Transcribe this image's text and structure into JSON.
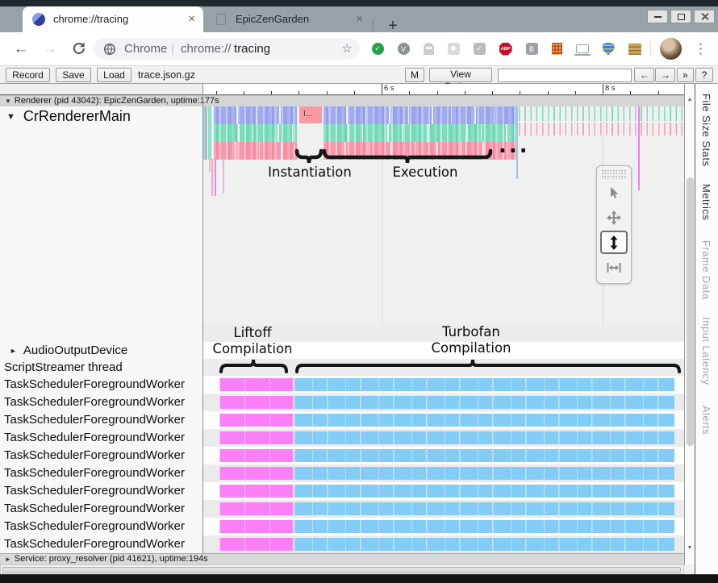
{
  "tab_bar": {
    "tabs": [
      {
        "title": "chrome://tracing",
        "active": true
      },
      {
        "title": "EpicZenGarden",
        "active": false
      }
    ],
    "close_glyph": "×",
    "new_tab_glyph": "+"
  },
  "icons": {
    "back": "←",
    "forward": "→",
    "star": "☆",
    "menu": "⋮",
    "scroll_up": "▲",
    "scroll_down": "▼"
  },
  "address_bar": {
    "site_name": "Chrome",
    "divider": "|",
    "url_scheme": "chrome://",
    "url_host": "tracing",
    "extensions": [
      {
        "name": "green-check-extension",
        "shape": "circle",
        "color": "#1ea446",
        "glyph": "✓"
      },
      {
        "name": "v-circle-extension",
        "shape": "circle",
        "color": "#8a9094",
        "glyph": "V"
      },
      {
        "name": "ghost-extension",
        "shape": "ghost",
        "color": "#c9cdd0",
        "glyph": ""
      },
      {
        "name": "tag-extension",
        "shape": "square",
        "color": "#d9dcde",
        "glyph": "✱"
      },
      {
        "name": "check-extension",
        "shape": "square",
        "color": "#b9bdc0",
        "glyph": "✓"
      },
      {
        "name": "adblock-plus-extension",
        "shape": "octagon",
        "color": "#c70d2c",
        "glyph": "ABP"
      },
      {
        "name": "letter-b-extension",
        "shape": "square",
        "color": "#9da1a4",
        "glyph": "B"
      },
      {
        "name": "red-notebook-extension",
        "shape": "notebook",
        "color": "#c4302b",
        "glyph": ""
      },
      {
        "name": "laptop-extension",
        "shape": "laptop",
        "color": "#9aa0a4",
        "glyph": ""
      },
      {
        "name": "shield-extension",
        "shape": "shield",
        "color": "#3e7de0",
        "glyph": ""
      },
      {
        "name": "archive-extension",
        "shape": "book",
        "color": "#c9a85c",
        "glyph": ""
      }
    ]
  },
  "toolbar": {
    "record_label": "Record",
    "save_label": "Save",
    "load_label": "Load",
    "filename": "trace.json.gz",
    "metrics_label": "M",
    "view_options_label": "View Options",
    "search_value": "",
    "prev_label": "←",
    "next_label": "→",
    "more_label": "»",
    "help_label": "?"
  },
  "ruler": {
    "major_tick_labels": [
      "6 s",
      "8 s"
    ]
  },
  "processes": {
    "renderer": {
      "arrow": "▼",
      "title": "Renderer (pid 43042): EpicZenGarden, uptime:177s"
    },
    "service": {
      "arrow": "►",
      "title": "Service: proxy_resolver (pid 41621), uptime:194s"
    }
  },
  "threads": {
    "main": {
      "arrow": "▼",
      "label": "CrRendererMain"
    },
    "audio": {
      "arrow": "►",
      "label": "AudioOutputDevice"
    },
    "script_streamer": {
      "label": "ScriptStreamer thread"
    },
    "workers": {
      "label": "TaskSchedulerForegroundWorker",
      "count": 10
    }
  },
  "annotations": {
    "truncated_slice": "I...",
    "instantiation": "Instantiation",
    "execution": "Execution",
    "ellipsis": "...",
    "liftoff_line1": "Liftoff",
    "liftoff_line2": "Compilation",
    "turbofan_line1": "Turbofan",
    "turbofan_line2": "Compilation"
  },
  "sidebar": {
    "items": [
      {
        "label": "File Size Stats",
        "enabled": true
      },
      {
        "label": "Metrics",
        "enabled": true
      },
      {
        "label": "Frame Data",
        "enabled": false
      },
      {
        "label": "Input Latency",
        "enabled": false
      },
      {
        "label": "Alerts",
        "enabled": false
      }
    ]
  },
  "colors": {
    "slice_lavender": "#a5aeef",
    "slice_mint": "#86dfc3",
    "slice_pink": "#f79cae",
    "truncated_slice_bg": "#f99aa2",
    "worker_magenta": "#fb80f8",
    "worker_blue": "#82ccf6",
    "accent_blue_line": "#8fc7f7",
    "accent_magenta_line": "#f07ef2"
  }
}
